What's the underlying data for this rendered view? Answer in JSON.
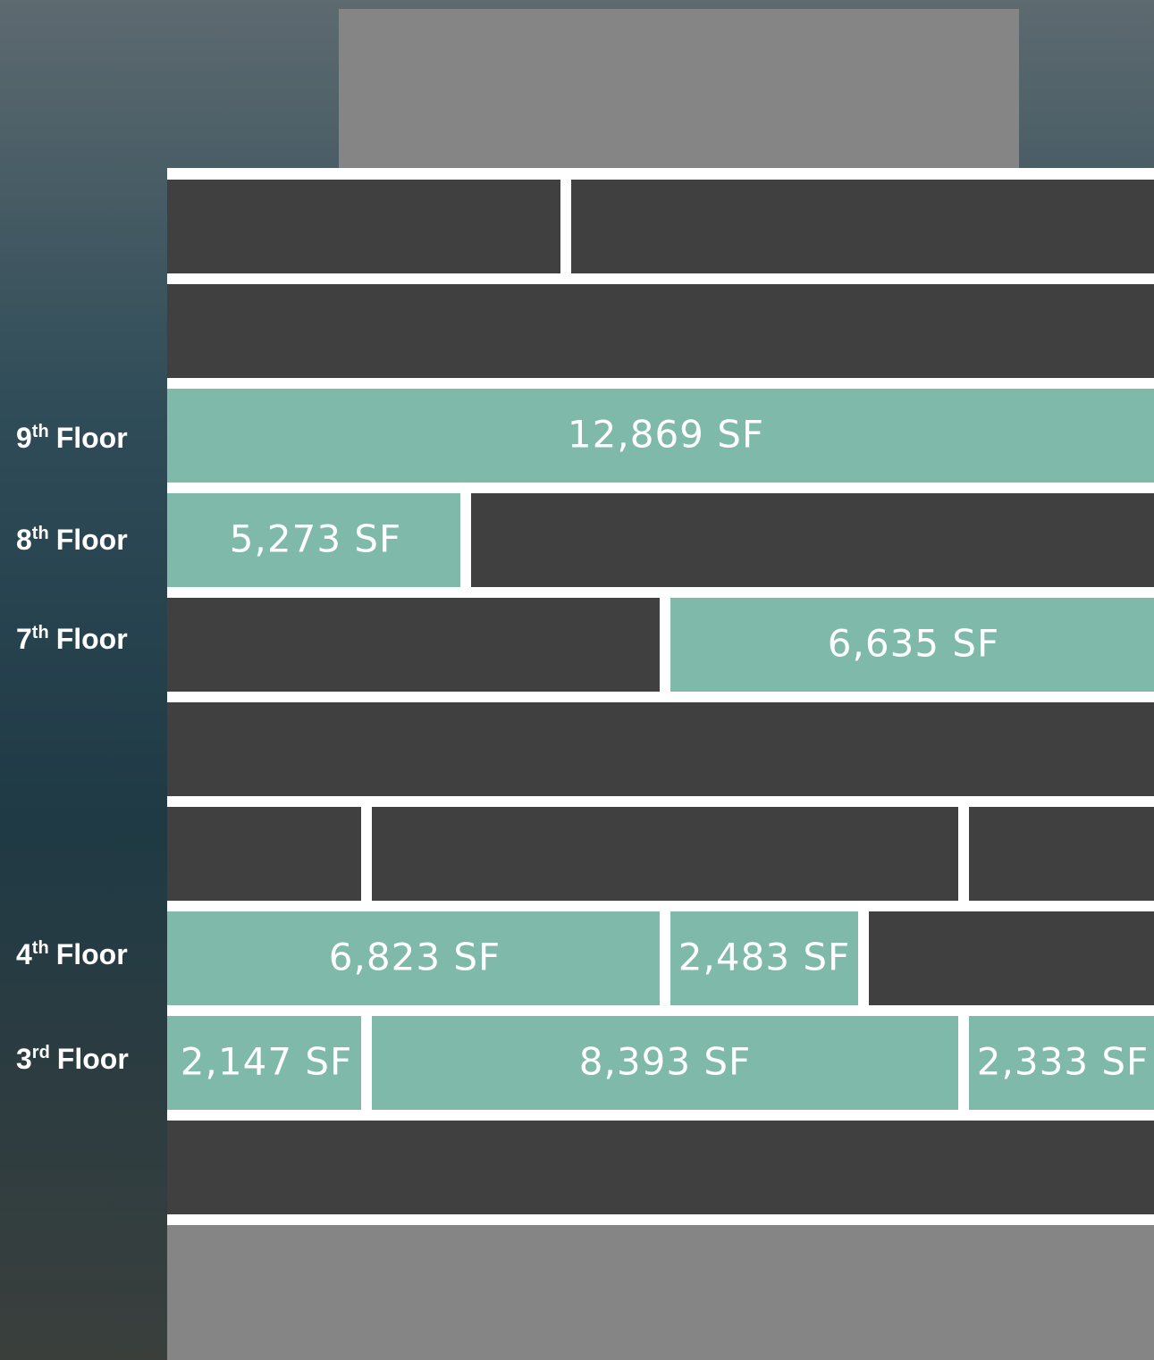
{
  "floors": [
    {
      "number": "9",
      "suffix": "th",
      "word": "Floor",
      "suites": [
        "12,869 SF"
      ]
    },
    {
      "number": "8",
      "suffix": "th",
      "word": "Floor",
      "suites": [
        "5,273 SF"
      ]
    },
    {
      "number": "7",
      "suffix": "th",
      "word": "Floor",
      "suites": [
        "6,635 SF"
      ]
    },
    {
      "number": "4",
      "suffix": "th",
      "word": "Floor",
      "suites": [
        "6,823 SF",
        "2,483 SF"
      ]
    },
    {
      "number": "3",
      "suffix": "rd",
      "word": "Floor",
      "suites": [
        "2,147 SF",
        "8,393 SF",
        "2,333 SF"
      ]
    }
  ]
}
